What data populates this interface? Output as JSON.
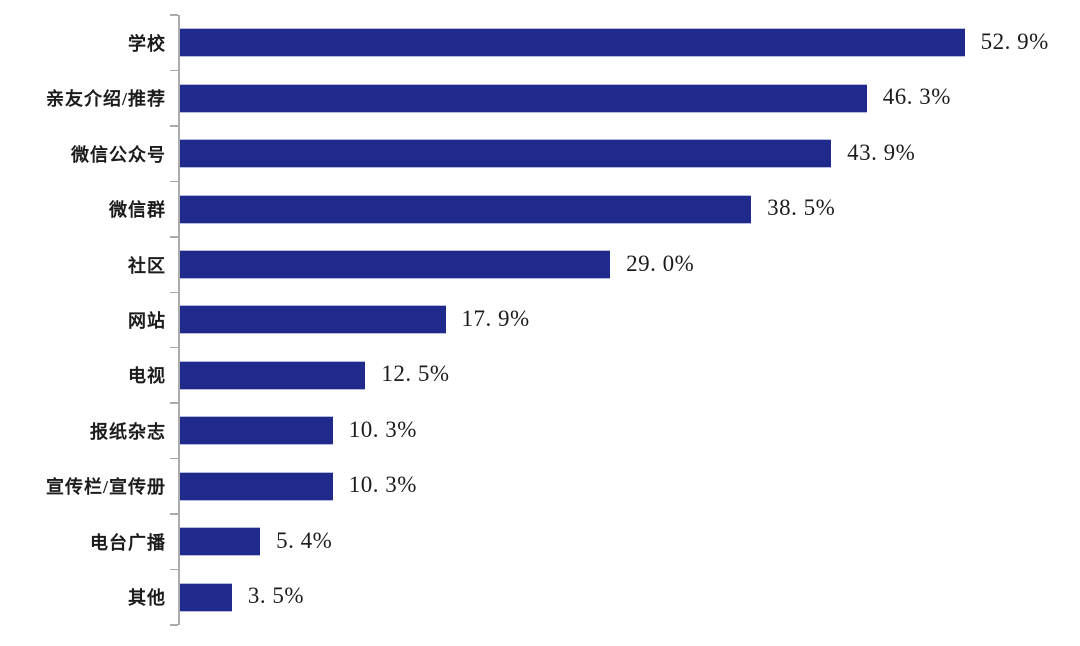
{
  "chart_data": {
    "type": "bar",
    "orientation": "horizontal",
    "title": "",
    "xlabel": "",
    "ylabel": "",
    "categories": [
      "学校",
      "亲友介绍/推荐",
      "微信公众号",
      "微信群",
      "社区",
      "网站",
      "电视",
      "报纸杂志",
      "宣传栏/宣传册",
      "电台广播",
      "其他"
    ],
    "values": [
      52.9,
      46.3,
      43.9,
      38.5,
      29.0,
      17.9,
      12.5,
      10.3,
      10.3,
      5.4,
      3.5
    ],
    "value_labels": [
      "52. 9%",
      "46. 3%",
      "43. 9%",
      "38. 5%",
      "29. 0%",
      "17. 9%",
      "12. 5%",
      "10. 3%",
      "10. 3%",
      "5. 4%",
      "3. 5%"
    ],
    "xlim": [
      0,
      60
    ],
    "grid": false,
    "legend": false,
    "bar_color": "#20298C",
    "axis_color": "#ABABAB",
    "text_color": "#1C1C1C",
    "background_color": "#FFFFFF"
  }
}
